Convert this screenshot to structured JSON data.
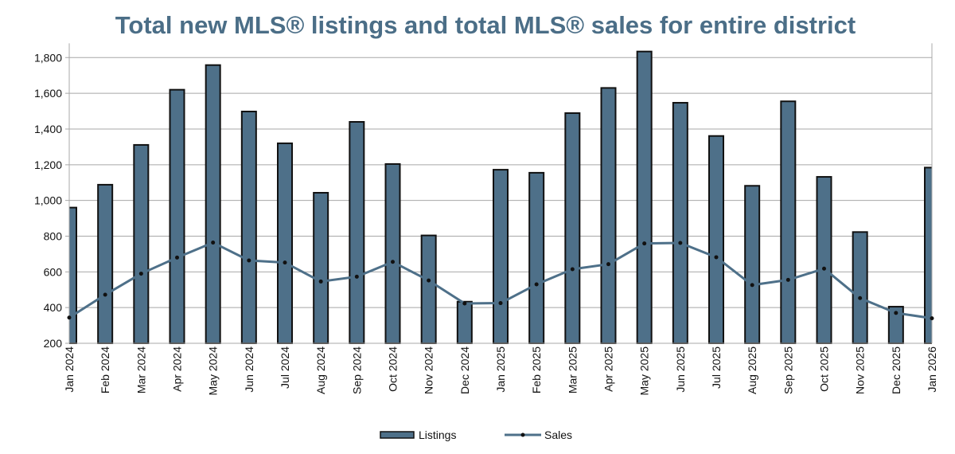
{
  "chart_data": {
    "type": "bar",
    "title": "Total new MLS® listings and total MLS® sales for entire district",
    "categories": [
      "Jan 2024",
      "Feb 2024",
      "Mar 2024",
      "Apr 2024",
      "May 2024",
      "Jun 2024",
      "Jul 2024",
      "Aug 2024",
      "Sep 2024",
      "Oct 2024",
      "Nov 2024",
      "Dec 2024",
      "Jan 2025",
      "Feb 2025",
      "Mar 2025",
      "Apr 2025",
      "May 2025",
      "Jun 2025",
      "Jul 2025",
      "Aug 2025",
      "Sep 2025",
      "Oct 2025",
      "Nov 2025",
      "Dec 2025",
      "Jan 2026"
    ],
    "series": [
      {
        "name": "Listings",
        "type": "bar",
        "color": "#4e7089",
        "values": [
          960,
          1088,
          1311,
          1620,
          1758,
          1498,
          1320,
          1043,
          1440,
          1204,
          804,
          433,
          1172,
          1155,
          1489,
          1630,
          1834,
          1547,
          1361,
          1082,
          1555,
          1132,
          823,
          405,
          1184
        ]
      },
      {
        "name": "Sales",
        "type": "line",
        "color": "#4e7089",
        "marker_color": "#111111",
        "values": [
          344,
          472,
          590,
          680,
          764,
          664,
          652,
          546,
          573,
          656,
          552,
          423,
          425,
          530,
          615,
          643,
          759,
          762,
          682,
          526,
          555,
          618,
          453,
          370,
          340
        ]
      }
    ],
    "xlabel": "",
    "ylabel": "",
    "ylim": [
      200,
      1880
    ],
    "yticks": [
      "200",
      "400",
      "600",
      "800",
      "1,000",
      "1,200",
      "1,400",
      "1,600",
      "1,800"
    ],
    "ytick_values": [
      200,
      400,
      600,
      800,
      1000,
      1200,
      1400,
      1600,
      1800
    ],
    "grid": true,
    "legend_position": "bottom"
  }
}
